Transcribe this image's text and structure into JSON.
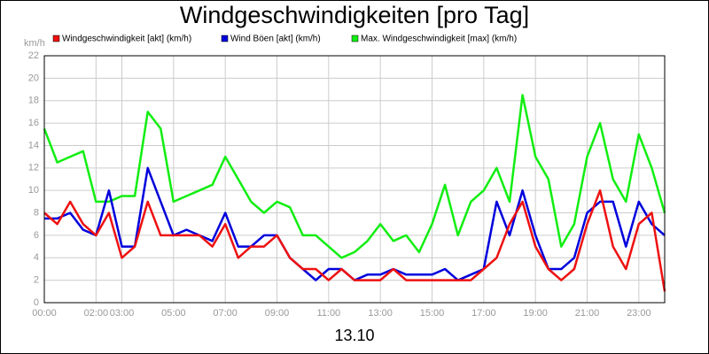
{
  "chart_data": {
    "type": "line",
    "title": "Windgeschwindigkeiten [pro Tag]",
    "ylabel": "km/h",
    "xlabel": "13.10",
    "x": [
      0,
      0.5,
      1,
      1.5,
      2,
      2.5,
      3,
      3.5,
      4,
      4.5,
      5,
      5.5,
      6,
      6.5,
      7,
      7.5,
      8,
      8.5,
      9,
      9.5,
      10,
      10.5,
      11,
      11.5,
      12,
      12.5,
      13,
      13.5,
      14,
      14.5,
      15,
      15.5,
      16,
      16.5,
      17,
      17.5,
      18,
      18.5,
      19,
      19.5,
      20,
      20.5,
      21,
      21.5,
      22,
      22.5,
      23,
      23.5,
      24
    ],
    "series": [
      {
        "name": "Windgeschwindigkeit [akt] (km/h)",
        "color": "#ee1111",
        "values": [
          8,
          7,
          9,
          7,
          6,
          8,
          4,
          5,
          9,
          6,
          6,
          6,
          6,
          5,
          7,
          4,
          5,
          5,
          6,
          4,
          3,
          3,
          2,
          3,
          2,
          2,
          2,
          3,
          2,
          2,
          2,
          2,
          2,
          2,
          3,
          4,
          7,
          9,
          5,
          3,
          2,
          3,
          7,
          10,
          5,
          3,
          7,
          8,
          1
        ]
      },
      {
        "name": "Wind Böen [akt] (km/h)",
        "color": "#0000dd",
        "values": [
          7.5,
          7.5,
          8,
          6.5,
          6,
          10,
          5,
          5,
          12,
          9,
          6,
          6.5,
          6,
          5.5,
          8,
          5,
          5,
          6,
          6,
          4,
          3,
          2,
          3,
          3,
          2,
          2.5,
          2.5,
          3,
          2.5,
          2.5,
          2.5,
          3,
          2,
          2.5,
          3,
          9,
          6,
          10,
          6,
          3,
          3,
          4,
          8,
          9,
          9,
          5,
          9,
          7,
          6
        ]
      },
      {
        "name": "Max. Windgeschwindigkeit [max] (km/h)",
        "color": "#11ee11",
        "values": [
          15.5,
          12.5,
          13,
          13.5,
          9,
          9,
          9.5,
          9.5,
          17,
          15.5,
          9,
          9.5,
          10,
          10.5,
          13,
          11,
          9,
          8,
          9,
          8.5,
          6,
          6,
          5,
          4,
          4.5,
          5.5,
          7,
          5.5,
          6,
          4.5,
          7,
          10.5,
          6,
          9,
          10,
          12,
          9,
          18.5,
          13,
          11,
          5,
          7,
          13,
          16,
          11,
          9,
          15,
          12,
          8
        ]
      }
    ],
    "xlim": [
      0,
      24
    ],
    "xticks": [
      {
        "value": 0,
        "label": "00:00"
      },
      {
        "value": 2,
        "label": "02:00"
      },
      {
        "value": 3,
        "label": "03:00"
      },
      {
        "value": 5,
        "label": "05:00"
      },
      {
        "value": 7,
        "label": "07:00"
      },
      {
        "value": 9,
        "label": "09:00"
      },
      {
        "value": 11,
        "label": "11:00"
      },
      {
        "value": 13,
        "label": "13:00"
      },
      {
        "value": 15,
        "label": "15:00"
      },
      {
        "value": 17,
        "label": "17:00"
      },
      {
        "value": 19,
        "label": "19:00"
      },
      {
        "value": 21,
        "label": "21:00"
      },
      {
        "value": 23,
        "label": "23:00"
      }
    ],
    "ylim": [
      0,
      22
    ],
    "yticks": [
      0,
      2,
      4,
      6,
      8,
      10,
      12,
      14,
      16,
      18,
      20,
      22
    ],
    "grid": true
  }
}
